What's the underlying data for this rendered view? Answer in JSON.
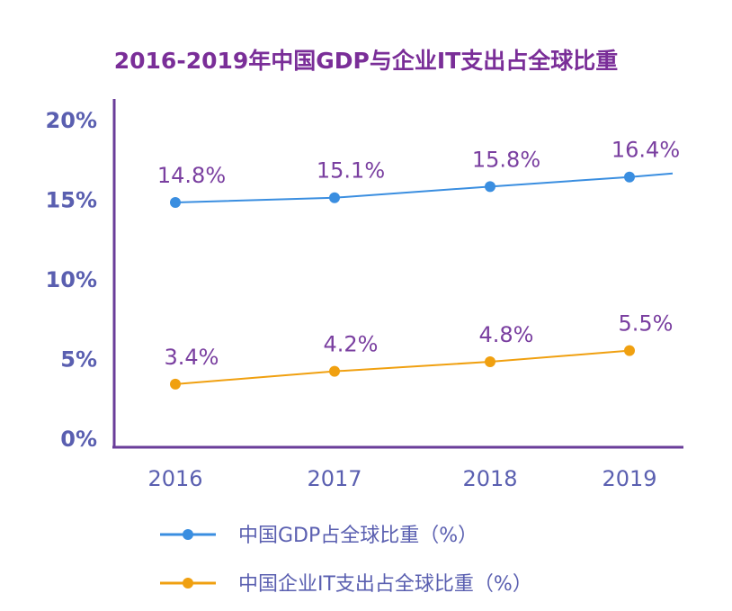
{
  "chart_data": {
    "type": "line",
    "title": "2016-2019年中国GDP与企业IT支出占全球比重",
    "xlabel": "",
    "ylabel": "",
    "categories": [
      "2016",
      "2017",
      "2018",
      "2019"
    ],
    "y_ticks": [
      "0%",
      "5%",
      "10%",
      "15%",
      "20%"
    ],
    "ylim": [
      0,
      20
    ],
    "grid": false,
    "legend_position": "bottom",
    "series": [
      {
        "name": "中国GDP占全球比重（%）",
        "values": [
          14.8,
          15.1,
          15.8,
          16.4
        ],
        "labels": [
          "14.8%",
          "15.1%",
          "15.8%",
          "16.4%"
        ],
        "color": "#3a8ee0"
      },
      {
        "name": "中国企业IT支出占全球比重（%）",
        "values": [
          3.4,
          4.2,
          4.8,
          5.5
        ],
        "labels": [
          "3.4%",
          "4.2%",
          "4.8%",
          "5.5%"
        ],
        "color": "#f0a010"
      }
    ]
  }
}
